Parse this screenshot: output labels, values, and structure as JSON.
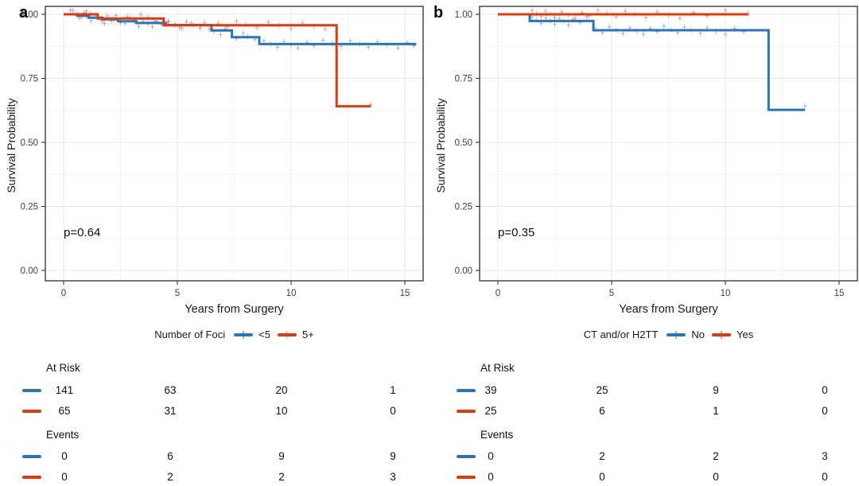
{
  "chart_data": [
    {
      "type": "line",
      "subtype": "kaplan-meier-step-curves",
      "panel_label": "a",
      "xlabel": "Years from Surgery",
      "ylabel": "Survival Probability",
      "p_value": "p=0.64",
      "xlim": [
        -0.8,
        15.8
      ],
      "ylim": [
        -0.04,
        1.03
      ],
      "grid": true,
      "x_ticks": [
        0,
        5,
        10,
        15
      ],
      "x_tick_labels": [
        "0",
        "5",
        "10",
        "15"
      ],
      "y_ticks": [
        0,
        0.25,
        0.5,
        0.75,
        1
      ],
      "y_tick_labels": [
        "0.00",
        "0.25",
        "0.50",
        "0.75",
        "1.00"
      ],
      "legend": {
        "position": "bottom",
        "title": "Number of Foci",
        "entries": [
          {
            "label": "<5",
            "color": "#2B74B8"
          },
          {
            "label": "5+",
            "color": "#DB3B0E"
          }
        ]
      },
      "series": [
        {
          "name": "<5",
          "color": "#2B74B8",
          "steps": [
            [
              0,
              1.0
            ],
            [
              0.6,
              0.994
            ],
            [
              1.1,
              0.987
            ],
            [
              1.7,
              0.98
            ],
            [
              2.4,
              0.973
            ],
            [
              3.2,
              0.966
            ],
            [
              4.5,
              0.958
            ],
            [
              6.5,
              0.937
            ],
            [
              7.4,
              0.911
            ],
            [
              8.6,
              0.884
            ],
            [
              15.5,
              0.884
            ]
          ],
          "censor_times": [
            0.3,
            0.5,
            0.7,
            0.9,
            1.0,
            1.2,
            1.4,
            1.6,
            1.8,
            2.0,
            2.1,
            2.3,
            2.5,
            2.7,
            2.9,
            3.1,
            3.3,
            3.5,
            3.7,
            3.9,
            4.1,
            4.3,
            4.6,
            4.9,
            5.1,
            5.4,
            5.7,
            6.0,
            6.2,
            6.6,
            6.9,
            7.1,
            7.6,
            7.9,
            8.1,
            8.4,
            8.8,
            9.1,
            9.4,
            9.7,
            10.0,
            10.3,
            10.7,
            11.0,
            11.4,
            11.8,
            12.2,
            12.6,
            13.0,
            13.4,
            13.8,
            14.2,
            14.7,
            15.1,
            15.4
          ]
        },
        {
          "name": "5+",
          "color": "#DB3B0E",
          "steps": [
            [
              0,
              1.0
            ],
            [
              1.5,
              0.984
            ],
            [
              4.4,
              0.957
            ],
            [
              12.0,
              0.641
            ],
            [
              13.5,
              0.641
            ]
          ],
          "censor_times": [
            0.4,
            0.6,
            0.8,
            1.0,
            1.2,
            1.7,
            1.9,
            2.2,
            2.5,
            2.8,
            3.1,
            3.4,
            3.7,
            4.0,
            4.6,
            4.9,
            5.2,
            5.6,
            6.0,
            6.4,
            6.8,
            7.2,
            7.6,
            8.0,
            8.5,
            9.0,
            9.5,
            10.0,
            10.5,
            11.0,
            11.5,
            13.5
          ]
        }
      ],
      "risk_table": {
        "at_risk_label": "At Risk",
        "events_label": "Events",
        "times": [
          0,
          5,
          10,
          15
        ],
        "rows_at_risk": [
          {
            "group": "<5",
            "color": "#2B74B8",
            "values": [
              141,
              63,
              20,
              1
            ]
          },
          {
            "group": "5+",
            "color": "#DB3B0E",
            "values": [
              65,
              31,
              10,
              0
            ]
          }
        ],
        "rows_events": [
          {
            "group": "<5",
            "color": "#2B74B8",
            "values": [
              0,
              6,
              9,
              9
            ]
          },
          {
            "group": "5+",
            "color": "#DB3B0E",
            "values": [
              0,
              2,
              2,
              3
            ]
          }
        ]
      }
    },
    {
      "type": "line",
      "subtype": "kaplan-meier-step-curves",
      "panel_label": "b",
      "xlabel": "Years from Surgery",
      "ylabel": "Survival Probability",
      "p_value": "p=0.35",
      "xlim": [
        -0.8,
        15.8
      ],
      "ylim": [
        -0.04,
        1.03
      ],
      "grid": true,
      "x_ticks": [
        0,
        5,
        10,
        15
      ],
      "x_tick_labels": [
        "0",
        "5",
        "10",
        "15"
      ],
      "y_ticks": [
        0,
        0.25,
        0.5,
        0.75,
        1
      ],
      "y_tick_labels": [
        "0.00",
        "0.25",
        "0.50",
        "0.75",
        "1.00"
      ],
      "legend": {
        "position": "bottom",
        "title": "CT and/or H2TT",
        "entries": [
          {
            "label": "No",
            "color": "#2B74B8"
          },
          {
            "label": "Yes",
            "color": "#DB3B0E"
          }
        ]
      },
      "series": [
        {
          "name": "No",
          "color": "#2B74B8",
          "steps": [
            [
              0,
              1.0
            ],
            [
              1.4,
              0.974
            ],
            [
              4.2,
              0.938
            ],
            [
              11.9,
              0.627
            ],
            [
              13.5,
              0.627
            ]
          ],
          "censor_times": [
            1.5,
            1.7,
            1.9,
            2.1,
            2.3,
            2.5,
            2.7,
            2.9,
            3.1,
            3.3,
            3.6,
            3.9,
            4.3,
            4.6,
            4.9,
            5.2,
            5.5,
            5.8,
            6.1,
            6.4,
            6.7,
            7.0,
            7.3,
            7.6,
            7.9,
            8.2,
            8.5,
            8.9,
            9.2,
            9.6,
            10.0,
            10.4,
            10.8,
            13.5
          ]
        },
        {
          "name": "Yes",
          "color": "#DB3B0E",
          "steps": [
            [
              0,
              1.0
            ],
            [
              11.0,
              1.0
            ]
          ],
          "censor_times": [
            1.5,
            1.7,
            1.9,
            2.1,
            2.3,
            2.5,
            2.8,
            3.1,
            3.4,
            3.7,
            4.0,
            4.4,
            4.8,
            5.2,
            5.6,
            6.0,
            6.5,
            7.0,
            7.5,
            8.0,
            8.6,
            9.2,
            10.0,
            11.0
          ]
        }
      ],
      "risk_table": {
        "at_risk_label": "At Risk",
        "events_label": "Events",
        "times": [
          0,
          5,
          10,
          15
        ],
        "rows_at_risk": [
          {
            "group": "No",
            "color": "#2B74B8",
            "values": [
              39,
              25,
              9,
              0
            ]
          },
          {
            "group": "Yes",
            "color": "#DB3B0E",
            "values": [
              25,
              6,
              1,
              0
            ]
          }
        ],
        "rows_events": [
          {
            "group": "No",
            "color": "#2B74B8",
            "values": [
              0,
              2,
              2,
              3
            ]
          },
          {
            "group": "Yes",
            "color": "#DB3B0E",
            "values": [
              0,
              0,
              0,
              0
            ]
          }
        ]
      }
    }
  ]
}
